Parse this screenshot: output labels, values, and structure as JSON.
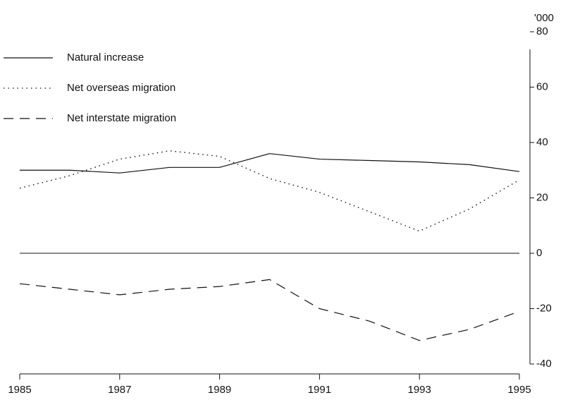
{
  "chart_data": {
    "type": "line",
    "y_unit_label": "'000",
    "x": [
      1985,
      1986,
      1987,
      1988,
      1989,
      1990,
      1991,
      1992,
      1993,
      1994,
      1995
    ],
    "xlim": [
      1985,
      1995
    ],
    "xticks": [
      1985,
      1987,
      1989,
      1991,
      1993,
      1995
    ],
    "ylim": [
      -40,
      80
    ],
    "yticks": [
      -40,
      -20,
      0,
      20,
      40,
      60,
      80
    ],
    "legend": "top-left",
    "series": [
      {
        "name": "Natural increase",
        "color": "#111111",
        "style": "solid",
        "values": [
          30,
          30,
          29,
          31,
          31,
          36,
          34,
          33.5,
          33,
          32,
          29.5
        ]
      },
      {
        "name": "Net overseas migration",
        "color": "#111111",
        "style": "dotted",
        "values": [
          23.5,
          28,
          34,
          37,
          35,
          27,
          22,
          15,
          8,
          16,
          26.5
        ]
      },
      {
        "name": "Net interstate migration",
        "color": "#111111",
        "style": "dashed",
        "values": [
          -11,
          -13,
          -15,
          -13,
          -12,
          -9.5,
          -20,
          -24.5,
          -31.5,
          -27.5,
          -21
        ]
      }
    ]
  }
}
